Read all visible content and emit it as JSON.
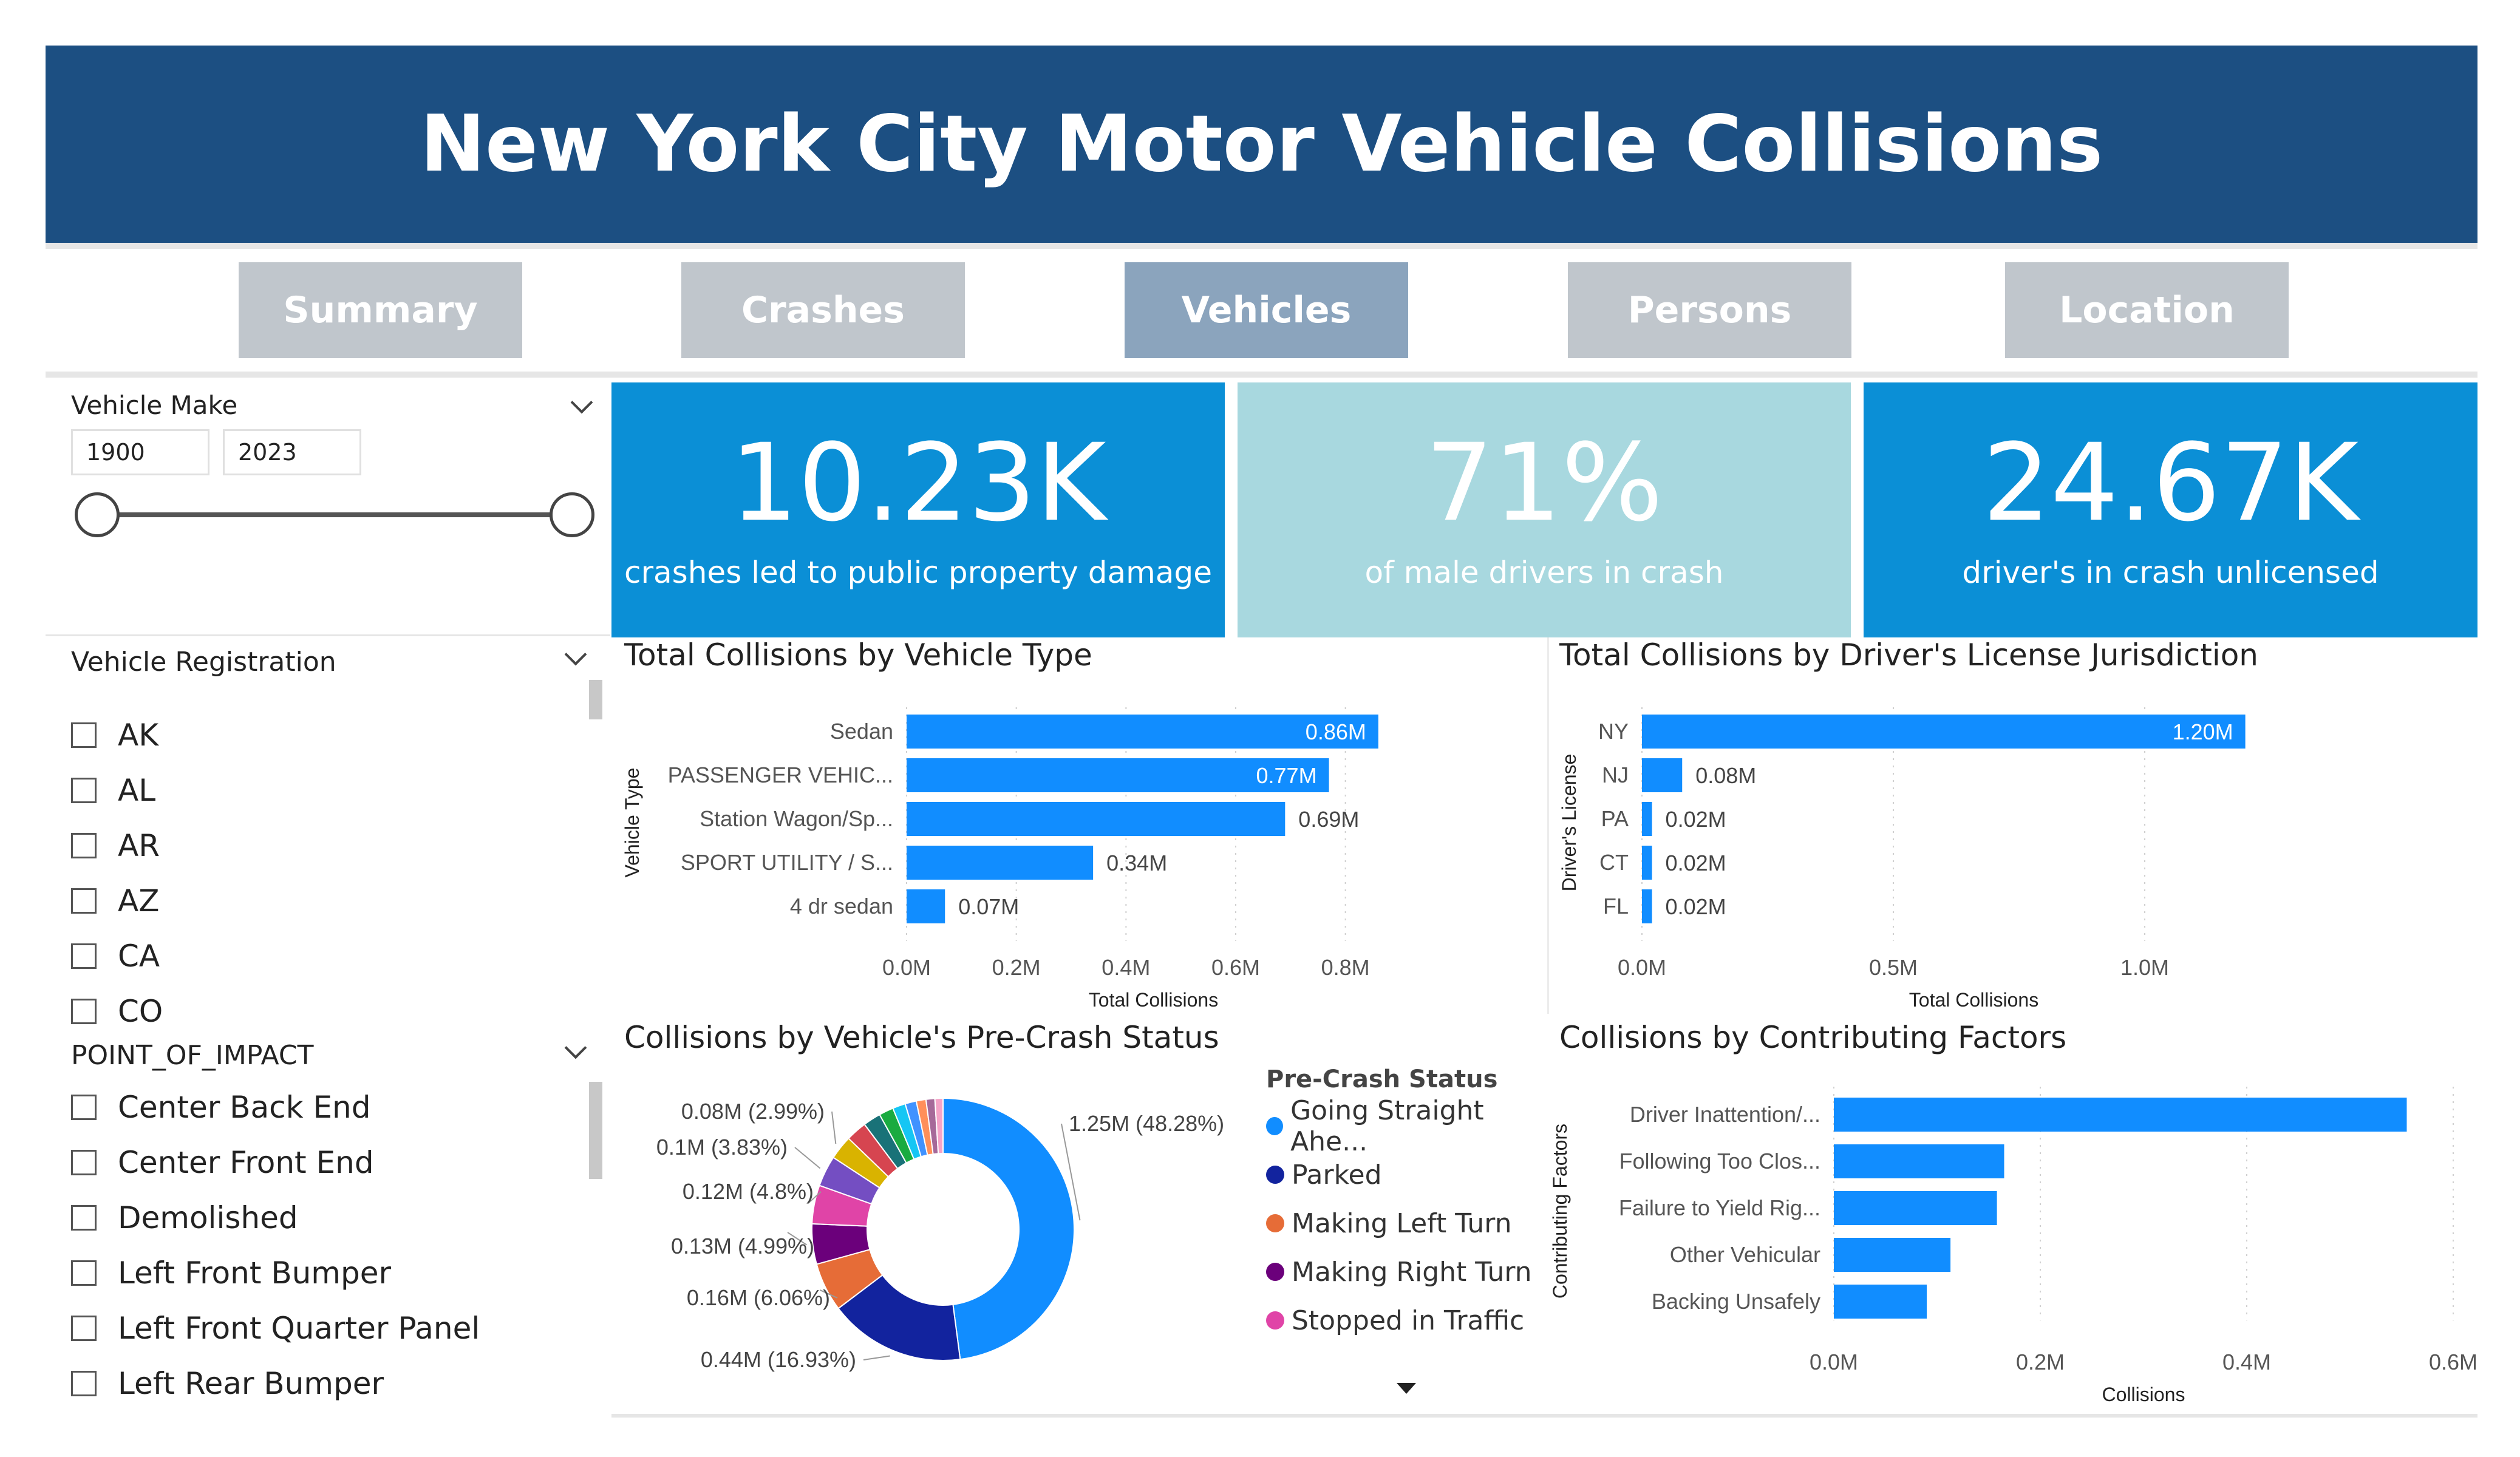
{
  "title": "New York City Motor Vehicle Collisions",
  "nav": [
    "Summary",
    "Crashes",
    "Vehicles",
    "Persons",
    "Location"
  ],
  "nav_active": "Vehicles",
  "year_slicer": {
    "title": "Vehicle Make",
    "from": "1900",
    "to": "2023"
  },
  "kpis": [
    {
      "value": "10.23K",
      "label": "crashes led to public property damage",
      "color": "#0b8fd6",
      "text_color": "#ffffff"
    },
    {
      "value": "71%",
      "label": "of male drivers in crash",
      "color": "#a8d8df",
      "text_color": "#ffffff"
    },
    {
      "value": "24.67K",
      "label": "driver's in crash unlicensed",
      "color": "#0b8fd6",
      "text_color": "#ffffff"
    }
  ],
  "registration_slicer": {
    "title": "Vehicle Registration",
    "items": [
      "AK",
      "AL",
      "AR",
      "AZ",
      "CA",
      "CO"
    ]
  },
  "impact_slicer": {
    "title": "POINT_OF_IMPACT",
    "items": [
      "Center Back End",
      "Center Front End",
      "Demolished",
      "Left Front Bumper",
      "Left Front Quarter Panel",
      "Left Rear Bumper"
    ]
  },
  "colors": {
    "bar": "#118dff",
    "title_bar": "#1c4f82",
    "nav": "#c0c6cc",
    "nav_active": "#8ba4bd"
  },
  "chart_data": [
    {
      "id": "vehicle_type",
      "type": "bar",
      "orientation": "horizontal",
      "title": "Total Collisions by Vehicle Type",
      "ylabel": "Vehicle Type",
      "xlabel": "Total Collisions",
      "categories": [
        "Sedan",
        "PASSENGER VEHIC...",
        "Station Wagon/Sp...",
        "SPORT UTILITY / S...",
        "4 dr sedan"
      ],
      "values": [
        0.86,
        0.77,
        0.69,
        0.34,
        0.07
      ],
      "labels": [
        "0.86M",
        "0.77M",
        "0.69M",
        "0.34M",
        "0.07M"
      ],
      "xticks": [
        0,
        0.2,
        0.4,
        0.6,
        0.8
      ],
      "xtick_labels": [
        "0.0M",
        "0.2M",
        "0.4M",
        "0.6M",
        "0.8M"
      ],
      "xlim": [
        0,
        0.9
      ]
    },
    {
      "id": "license_jurisdiction",
      "type": "bar",
      "orientation": "horizontal",
      "title": "Total Collisions by Driver's License Jurisdiction",
      "ylabel": "Driver's License",
      "xlabel": "Total Collisions",
      "categories": [
        "NY",
        "NJ",
        "PA",
        "CT",
        "FL"
      ],
      "values": [
        1.2,
        0.08,
        0.02,
        0.02,
        0.02
      ],
      "labels": [
        "1.20M",
        "0.08M",
        "0.02M",
        "0.02M",
        "0.02M"
      ],
      "xticks": [
        0,
        0.5,
        1.0
      ],
      "xtick_labels": [
        "0.0M",
        "0.5M",
        "1.0M"
      ],
      "xlim": [
        0,
        1.32
      ]
    },
    {
      "id": "pre_crash",
      "type": "pie",
      "donut": true,
      "title": "Collisions by Vehicle's Pre-Crash Status",
      "legend_title": "Pre-Crash Status",
      "legend": [
        {
          "name": "Going Straight Ahe...",
          "color": "#118dff"
        },
        {
          "name": "Parked",
          "color": "#12239e"
        },
        {
          "name": "Making Left Turn",
          "color": "#e66c37"
        },
        {
          "name": "Making Right Turn",
          "color": "#6b007b"
        },
        {
          "name": "Stopped in Traffic",
          "color": "#e044a7"
        }
      ],
      "slices": [
        {
          "value": 48.28,
          "color": "#118dff",
          "label": "1.25M (48.28%)"
        },
        {
          "value": 16.93,
          "color": "#12239e",
          "label": "0.44M (16.93%)"
        },
        {
          "value": 6.06,
          "color": "#e66c37",
          "label": "0.16M (6.06%)"
        },
        {
          "value": 4.99,
          "color": "#6b007b",
          "label": "0.13M (4.99%)"
        },
        {
          "value": 4.8,
          "color": "#e044a7",
          "label": "0.12M (4.8%)"
        },
        {
          "value": 3.83,
          "color": "#744ec2",
          "label": "0.1M (3.83%)"
        },
        {
          "value": 2.99,
          "color": "#d9b300",
          "label": "0.08M (2.99%)"
        },
        {
          "value": 2.6,
          "color": "#d64550",
          "label": ""
        },
        {
          "value": 2.2,
          "color": "#197278",
          "label": ""
        },
        {
          "value": 1.8,
          "color": "#1aab40",
          "label": ""
        },
        {
          "value": 1.6,
          "color": "#15c6f4",
          "label": ""
        },
        {
          "value": 1.4,
          "color": "#4092ff",
          "label": ""
        },
        {
          "value": 1.2,
          "color": "#ff8f5a",
          "label": ""
        },
        {
          "value": 1.1,
          "color": "#a66999",
          "label": ""
        },
        {
          "value": 1.0,
          "color": "#f5a3c7",
          "label": ""
        }
      ]
    },
    {
      "id": "contributing_factors",
      "type": "bar",
      "orientation": "horizontal",
      "title": "Collisions by Contributing Factors",
      "ylabel": "Contributing Factors",
      "xlabel": "Collisions",
      "categories": [
        "Driver Inattention/...",
        "Following Too Clos...",
        "Failure to Yield Rig...",
        "Other Vehicular",
        "Backing Unsafely"
      ],
      "values": [
        0.555,
        0.165,
        0.158,
        0.113,
        0.09
      ],
      "xticks": [
        0,
        0.2,
        0.4,
        0.6
      ],
      "xtick_labels": [
        "0.0M",
        "0.2M",
        "0.4M",
        "0.6M"
      ],
      "xlim": [
        0,
        0.6
      ]
    }
  ]
}
